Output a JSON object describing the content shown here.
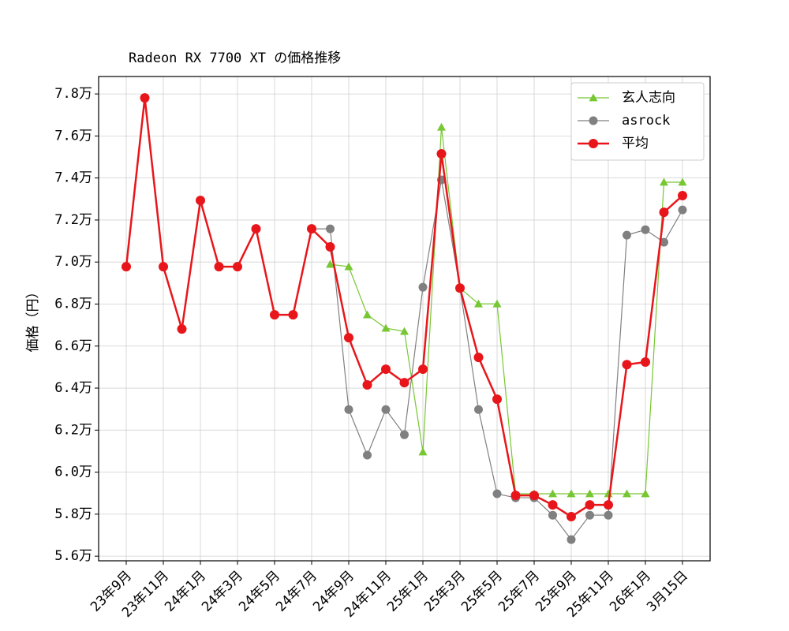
{
  "chart_data": {
    "type": "line",
    "title": "Radeon RX 7700 XT の価格推移",
    "y_label": "価格（円）",
    "categories": [
      "23年9月",
      null,
      "23年11月",
      null,
      "24年1月",
      null,
      "24年3月",
      null,
      "24年5月",
      null,
      "24年7月",
      null,
      "24年9月",
      null,
      "24年11月",
      null,
      "25年1月",
      null,
      "25年3月",
      null,
      "25年5月",
      null,
      "25年7月",
      null,
      "25年9月",
      null,
      "25年11月",
      null,
      "26年1月",
      null,
      "3月15日"
    ],
    "series": [
      {
        "name": "玄人志向",
        "color": "#77c733",
        "marker": "triangle",
        "linewidth": 1.2,
        "values": [
          null,
          null,
          null,
          null,
          null,
          null,
          null,
          null,
          null,
          null,
          null,
          69890,
          69780,
          67490,
          66850,
          66700,
          60960,
          76420,
          68760,
          68010,
          68010,
          58970,
          58970,
          58970,
          58970,
          58970,
          58970,
          58970,
          58970,
          73800,
          73800
        ]
      },
      {
        "name": "asrock",
        "color": "#808080",
        "marker": "circle",
        "linewidth": 1.2,
        "values": [
          69780,
          77810,
          69780,
          66810,
          72930,
          69780,
          69780,
          71580,
          67490,
          67490,
          71580,
          71580,
          62980,
          60810,
          62980,
          61780,
          68800,
          73910,
          68760,
          62980,
          58970,
          58780,
          58780,
          57950,
          56790,
          57950,
          57950,
          71280,
          71540,
          70940,
          72480
        ]
      },
      {
        "name": "平均",
        "color": "#e8161b",
        "marker": "circle",
        "linewidth": 2.5,
        "values": [
          69780,
          77810,
          69780,
          66810,
          72930,
          69780,
          69780,
          71580,
          67490,
          67490,
          71580,
          70720,
          66400,
          64150,
          64900,
          64260,
          64900,
          75150,
          68760,
          65460,
          63470,
          58890,
          58890,
          58440,
          57880,
          58440,
          58440,
          65120,
          65240,
          72370,
          73160
        ]
      }
    ],
    "ylim": [
      55780,
      78830
    ],
    "yticks": [
      {
        "value": 56000,
        "label": "5.6万"
      },
      {
        "value": 58000,
        "label": "5.8万"
      },
      {
        "value": 60000,
        "label": "6.0万"
      },
      {
        "value": 62000,
        "label": "6.2万"
      },
      {
        "value": 64000,
        "label": "6.4万"
      },
      {
        "value": 66000,
        "label": "6.6万"
      },
      {
        "value": 68000,
        "label": "6.8万"
      },
      {
        "value": 70000,
        "label": "7.0万"
      },
      {
        "value": 72000,
        "label": "7.2万"
      },
      {
        "value": 74000,
        "label": "7.4万"
      },
      {
        "value": 76000,
        "label": "7.6万"
      },
      {
        "value": 78000,
        "label": "7.8万"
      }
    ],
    "grid": true,
    "legend": "upper right"
  }
}
